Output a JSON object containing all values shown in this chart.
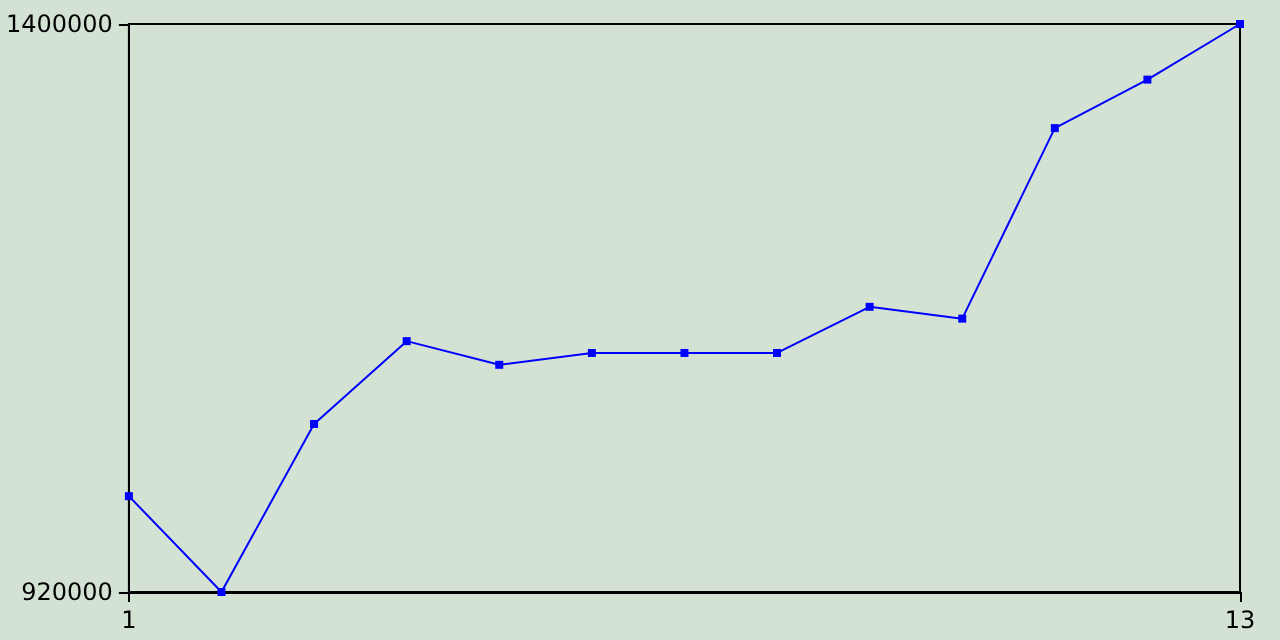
{
  "chart_data": {
    "type": "line",
    "x": [
      1,
      2,
      3,
      4,
      5,
      6,
      7,
      8,
      9,
      10,
      11,
      12,
      13
    ],
    "series": [
      {
        "color": "#0000ff",
        "values": [
          1001000,
          920000,
          1062000,
          1132000,
          1112000,
          1122000,
          1122000,
          1122000,
          1161000,
          1151000,
          1312000,
          1353000,
          1400000
        ]
      }
    ],
    "xlim": [
      1,
      13
    ],
    "xticks": [
      1,
      13
    ],
    "ylim": [
      920000,
      1400000
    ],
    "yticks": [
      920000,
      1400000
    ],
    "grid": false,
    "marker": "square",
    "line_style": "solid"
  }
}
